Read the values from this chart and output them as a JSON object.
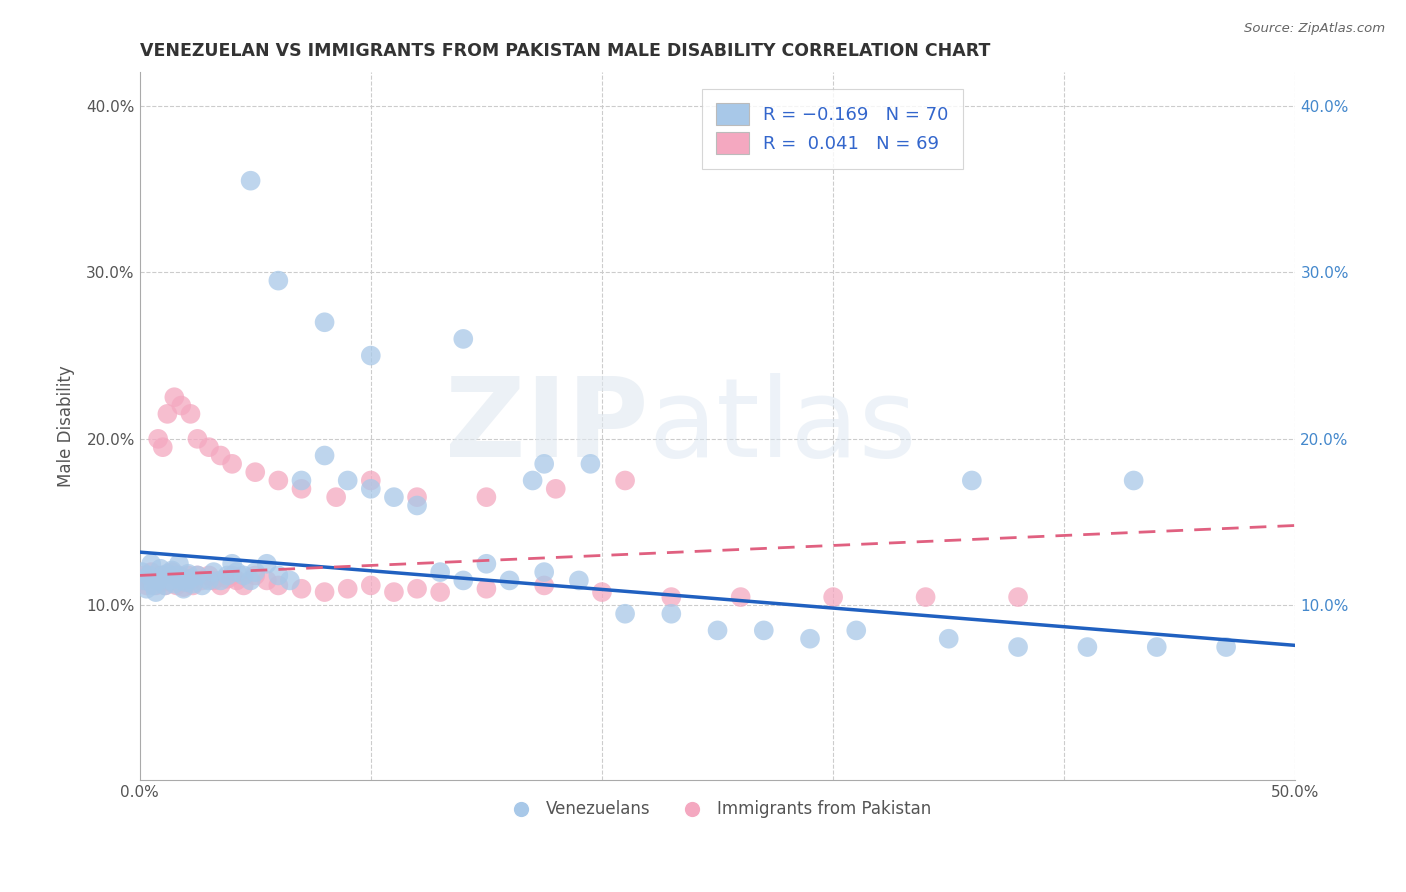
{
  "title": "VENEZUELAN VS IMMIGRANTS FROM PAKISTAN MALE DISABILITY CORRELATION CHART",
  "source_text": "Source: ZipAtlas.com",
  "ylabel": "Male Disability",
  "xlim": [
    0.0,
    0.5
  ],
  "ylim": [
    -0.005,
    0.42
  ],
  "blue_color": "#a8c8e8",
  "pink_color": "#f4a8c0",
  "blue_line_color": "#2060c0",
  "pink_line_color": "#e06080",
  "grid_color": "#cccccc",
  "venezuelan_x": [
    0.001,
    0.002,
    0.003,
    0.004,
    0.005,
    0.006,
    0.007,
    0.008,
    0.009,
    0.01,
    0.011,
    0.012,
    0.013,
    0.014,
    0.015,
    0.016,
    0.017,
    0.018,
    0.019,
    0.02,
    0.021,
    0.022,
    0.023,
    0.025,
    0.027,
    0.03,
    0.032,
    0.035,
    0.038,
    0.04,
    0.042,
    0.045,
    0.048,
    0.05,
    0.055,
    0.06,
    0.065,
    0.07,
    0.08,
    0.09,
    0.1,
    0.11,
    0.12,
    0.13,
    0.14,
    0.15,
    0.16,
    0.175,
    0.19,
    0.21,
    0.23,
    0.25,
    0.27,
    0.29,
    0.31,
    0.35,
    0.38,
    0.41,
    0.44,
    0.47,
    0.048,
    0.06,
    0.08,
    0.1,
    0.14,
    0.17,
    0.175,
    0.195,
    0.36,
    0.43
  ],
  "venezuelan_y": [
    0.12,
    0.115,
    0.11,
    0.118,
    0.125,
    0.112,
    0.108,
    0.115,
    0.122,
    0.118,
    0.112,
    0.119,
    0.115,
    0.121,
    0.113,
    0.118,
    0.125,
    0.115,
    0.11,
    0.114,
    0.119,
    0.116,
    0.113,
    0.118,
    0.112,
    0.115,
    0.12,
    0.115,
    0.118,
    0.125,
    0.12,
    0.118,
    0.115,
    0.12,
    0.125,
    0.118,
    0.115,
    0.175,
    0.19,
    0.175,
    0.17,
    0.165,
    0.16,
    0.12,
    0.115,
    0.125,
    0.115,
    0.12,
    0.115,
    0.095,
    0.095,
    0.085,
    0.085,
    0.08,
    0.085,
    0.08,
    0.075,
    0.075,
    0.075,
    0.075,
    0.355,
    0.295,
    0.27,
    0.25,
    0.26,
    0.175,
    0.185,
    0.185,
    0.175,
    0.175
  ],
  "pakistan_x": [
    0.001,
    0.002,
    0.003,
    0.004,
    0.005,
    0.006,
    0.007,
    0.008,
    0.009,
    0.01,
    0.011,
    0.012,
    0.013,
    0.014,
    0.015,
    0.016,
    0.017,
    0.018,
    0.019,
    0.02,
    0.021,
    0.022,
    0.023,
    0.025,
    0.027,
    0.03,
    0.032,
    0.035,
    0.038,
    0.04,
    0.042,
    0.045,
    0.05,
    0.055,
    0.06,
    0.07,
    0.08,
    0.09,
    0.1,
    0.11,
    0.12,
    0.13,
    0.15,
    0.175,
    0.2,
    0.23,
    0.26,
    0.3,
    0.34,
    0.38,
    0.008,
    0.01,
    0.012,
    0.015,
    0.018,
    0.022,
    0.025,
    0.03,
    0.035,
    0.04,
    0.05,
    0.06,
    0.07,
    0.085,
    0.1,
    0.12,
    0.15,
    0.18,
    0.21
  ],
  "pakistan_y": [
    0.115,
    0.118,
    0.112,
    0.116,
    0.12,
    0.115,
    0.112,
    0.116,
    0.118,
    0.114,
    0.112,
    0.118,
    0.115,
    0.12,
    0.116,
    0.112,
    0.118,
    0.115,
    0.111,
    0.116,
    0.118,
    0.115,
    0.112,
    0.118,
    0.115,
    0.118,
    0.115,
    0.112,
    0.116,
    0.118,
    0.115,
    0.112,
    0.118,
    0.115,
    0.112,
    0.11,
    0.108,
    0.11,
    0.112,
    0.108,
    0.11,
    0.108,
    0.11,
    0.112,
    0.108,
    0.105,
    0.105,
    0.105,
    0.105,
    0.105,
    0.2,
    0.195,
    0.215,
    0.225,
    0.22,
    0.215,
    0.2,
    0.195,
    0.19,
    0.185,
    0.18,
    0.175,
    0.17,
    0.165,
    0.175,
    0.165,
    0.165,
    0.17,
    0.175
  ],
  "ven_line_x0": 0.0,
  "ven_line_y0": 0.132,
  "ven_line_x1": 0.5,
  "ven_line_y1": 0.076,
  "pak_line_x0": 0.0,
  "pak_line_y0": 0.118,
  "pak_line_x1": 0.5,
  "pak_line_y1": 0.148
}
